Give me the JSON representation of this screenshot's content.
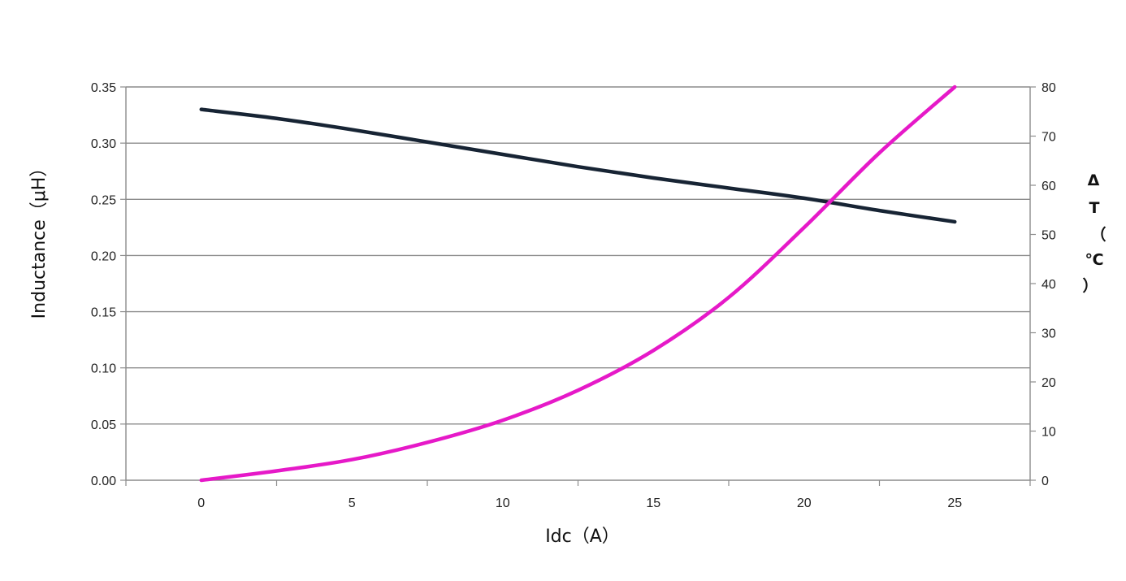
{
  "chart_data": {
    "type": "line",
    "title": "",
    "xlabel": "Idc（A）",
    "ylabel": "Inductance（μH）",
    "y2label_lines": [
      "Δ",
      "T",
      "（",
      "℃",
      "）"
    ],
    "xlim": [
      -2.5,
      27.5
    ],
    "x_ticks": [
      0,
      5,
      10,
      15,
      20,
      25
    ],
    "ylim": [
      0,
      0.35
    ],
    "y_ticks": [
      "0.00",
      "0.05",
      "0.10",
      "0.15",
      "0.20",
      "0.25",
      "0.30",
      "0.35"
    ],
    "y2lim": [
      0,
      80
    ],
    "y2_ticks": [
      "0",
      "10",
      "20",
      "30",
      "40",
      "50",
      "60",
      "70",
      "80"
    ],
    "grid": true,
    "series": [
      {
        "axis": "left",
        "color": "#172434",
        "x": [
          0,
          2.5,
          5,
          7.5,
          10,
          12.5,
          15,
          17.5,
          20,
          22.5,
          25
        ],
        "values": [
          0.33,
          0.322,
          0.312,
          0.301,
          0.29,
          0.279,
          0.269,
          0.26,
          0.251,
          0.24,
          0.23
        ]
      },
      {
        "axis": "right",
        "color": "#e619c8",
        "x": [
          0,
          2.5,
          5,
          7.5,
          10,
          12.5,
          15,
          17.5,
          20,
          22.5,
          25
        ],
        "values": [
          0,
          1.9,
          4.2,
          7.7,
          12.2,
          18.3,
          26.4,
          37.2,
          51.4,
          66.6,
          80
        ]
      }
    ]
  }
}
